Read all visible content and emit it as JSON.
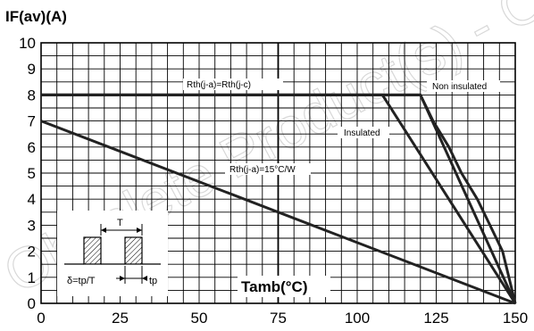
{
  "chart_data": {
    "type": "line",
    "title": "",
    "ylabel": "IF(av)(A)",
    "xlabel": "Tamb(°C)",
    "xlim": [
      0,
      150
    ],
    "ylim": [
      0,
      10
    ],
    "x_ticks": [
      "0",
      "25",
      "50",
      "75",
      "100",
      "125",
      "150"
    ],
    "y_ticks": [
      "0",
      "1",
      "2",
      "3",
      "4",
      "5",
      "6",
      "7",
      "8",
      "9",
      "10"
    ],
    "grid": true,
    "series": [
      {
        "name": "Rth(j-a)=Rth(j-c)",
        "points": [
          [
            0,
            8
          ],
          [
            120,
            8
          ],
          [
            150,
            0
          ]
        ]
      },
      {
        "name": "Non insulated",
        "points": [
          [
            0,
            8
          ],
          [
            120,
            8
          ],
          [
            124,
            7
          ],
          [
            129,
            6
          ],
          [
            133,
            5
          ],
          [
            138,
            4
          ],
          [
            142,
            3
          ],
          [
            146,
            2
          ],
          [
            150,
            0
          ]
        ]
      },
      {
        "name": "Insulated",
        "points": [
          [
            0,
            8
          ],
          [
            108,
            8
          ],
          [
            150,
            0
          ]
        ]
      },
      {
        "name": "Rth(j-a)=15°C/W",
        "points": [
          [
            0,
            7
          ],
          [
            150,
            0
          ]
        ]
      }
    ],
    "annotations": {
      "rth_jc": "Rth(j-a)=Rth(j-c)",
      "non_insulated": "Non insulated",
      "insulated": "Insulated",
      "rth_15": "Rth(j-a)=15°C/W"
    },
    "inset": {
      "T_label": "T",
      "delta_label": "δ=tp/T",
      "tp_label": "tp"
    },
    "watermark": "Obsolete Product(s) - Obsolete"
  }
}
